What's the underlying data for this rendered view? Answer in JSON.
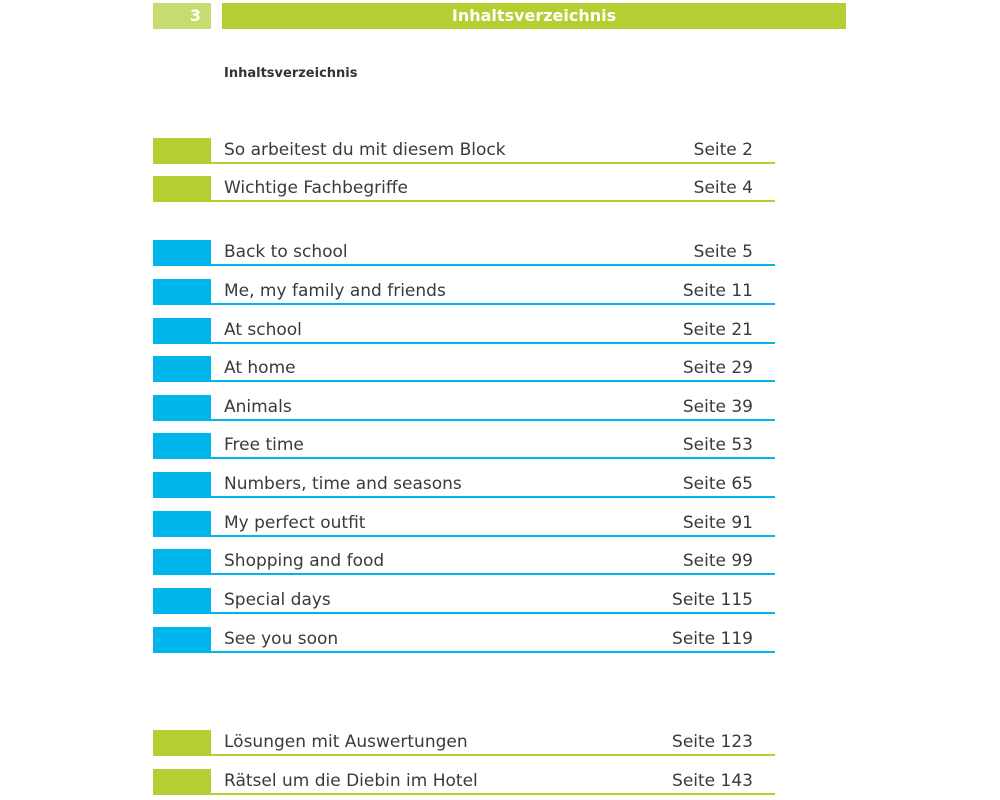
{
  "header": {
    "page_number": "3",
    "title": "Inhaltsverzeichnis"
  },
  "subtitle": "Inhaltsverzeichnis",
  "colors": {
    "green": "#b4cf32",
    "blue": "#00b5e9"
  },
  "entries": [
    {
      "label": "So arbeitest du mit diesem Block",
      "page": "Seite 2",
      "color": "green"
    },
    {
      "label": "Wichtige Fachbegriffe",
      "page": "Seite 4",
      "color": "green"
    },
    {
      "label": "Back to school",
      "page": "Seite 5",
      "color": "blue"
    },
    {
      "label": "Me, my family and friends",
      "page": "Seite 11",
      "color": "blue"
    },
    {
      "label": "At school",
      "page": "Seite 21",
      "color": "blue"
    },
    {
      "label": "At home",
      "page": "Seite 29",
      "color": "blue"
    },
    {
      "label": "Animals",
      "page": "Seite 39",
      "color": "blue"
    },
    {
      "label": "Free time",
      "page": "Seite 53",
      "color": "blue"
    },
    {
      "label": "Numbers, time and seasons",
      "page": "Seite 65",
      "color": "blue"
    },
    {
      "label": "My perfect outfit",
      "page": "Seite 91",
      "color": "blue"
    },
    {
      "label": "Shopping and food",
      "page": "Seite 99",
      "color": "blue"
    },
    {
      "label": "Special days",
      "page": "Seite 115",
      "color": "blue"
    },
    {
      "label": "See you soon",
      "page": "Seite 119",
      "color": "blue"
    },
    {
      "label": "Lösungen mit Auswertungen",
      "page": "Seite 123",
      "color": "green"
    },
    {
      "label": "Rätsel um die Diebin im Hotel",
      "page": "Seite 143",
      "color": "green"
    }
  ]
}
